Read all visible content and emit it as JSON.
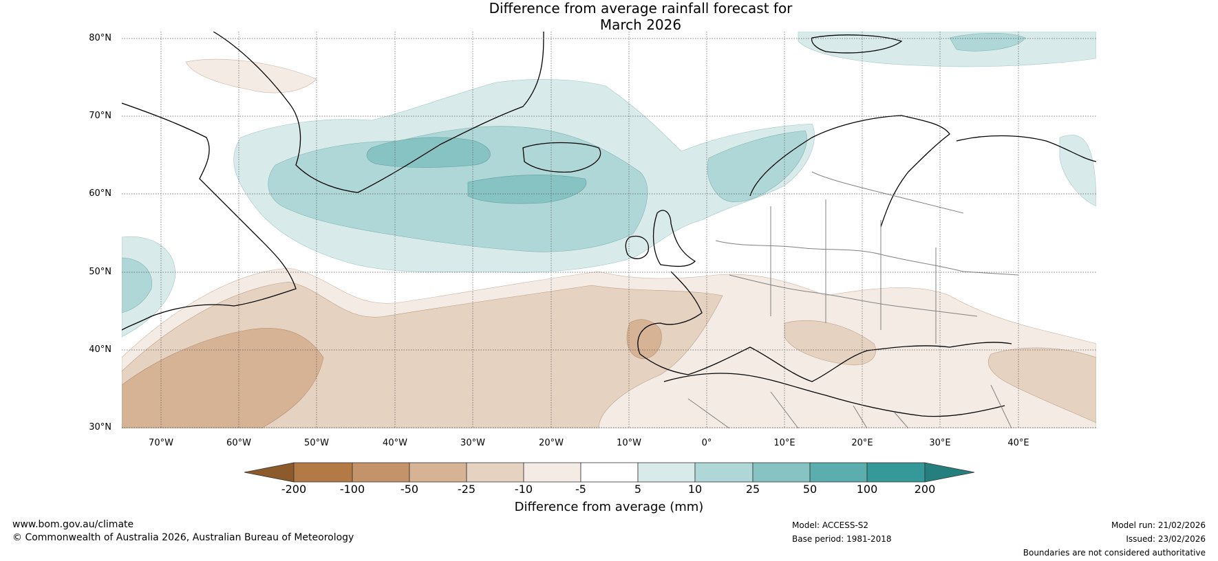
{
  "title": {
    "line1": "Difference from average rainfall forecast for",
    "line2": "March 2026"
  },
  "map": {
    "projection": "equirectangular",
    "region": "North Atlantic and Europe",
    "lon_range": [
      -75,
      50
    ],
    "lat_range": [
      30,
      80
    ],
    "lat_labels": [
      "80°N",
      "70°N",
      "60°N",
      "50°N",
      "40°N",
      "30°N"
    ],
    "lon_labels": [
      "70°W",
      "60°W",
      "50°W",
      "40°W",
      "30°W",
      "20°W",
      "10°W",
      "0°",
      "10°E",
      "20°E",
      "30°E",
      "40°E"
    ],
    "features": [
      "Greenland",
      "Iceland",
      "Scandinavia",
      "British Isles",
      "Iberia",
      "Mediterranean",
      "North Africa",
      "Turkey",
      "Eastern Canada"
    ]
  },
  "colorbar": {
    "title": "Difference from average (mm)",
    "labels": [
      "-200",
      "-100",
      "-50",
      "-25",
      "-10",
      "-5",
      "5",
      "10",
      "25",
      "50",
      "100",
      "200"
    ],
    "colors": [
      "#8c5a2b",
      "#b47a45",
      "#c49369",
      "#d6b394",
      "#e5d2c0",
      "#f4ebe4",
      "#ffffff",
      "#d8ebea",
      "#afd7d7",
      "#86c3c2",
      "#5caeae",
      "#35999a",
      "#267f7f"
    ]
  },
  "footer": {
    "website": "www.bom.gov.au/climate",
    "copyright": "© Commonwealth of Australia 2026, Australian Bureau of Meteorology",
    "model": "Model: ACCESS-S2",
    "base_period": "Base period: 1981-2018",
    "model_run": "Model run: 21/02/2026",
    "issued": "Issued: 23/02/2026",
    "disclaimer": "Boundaries are not considered authoritative"
  }
}
